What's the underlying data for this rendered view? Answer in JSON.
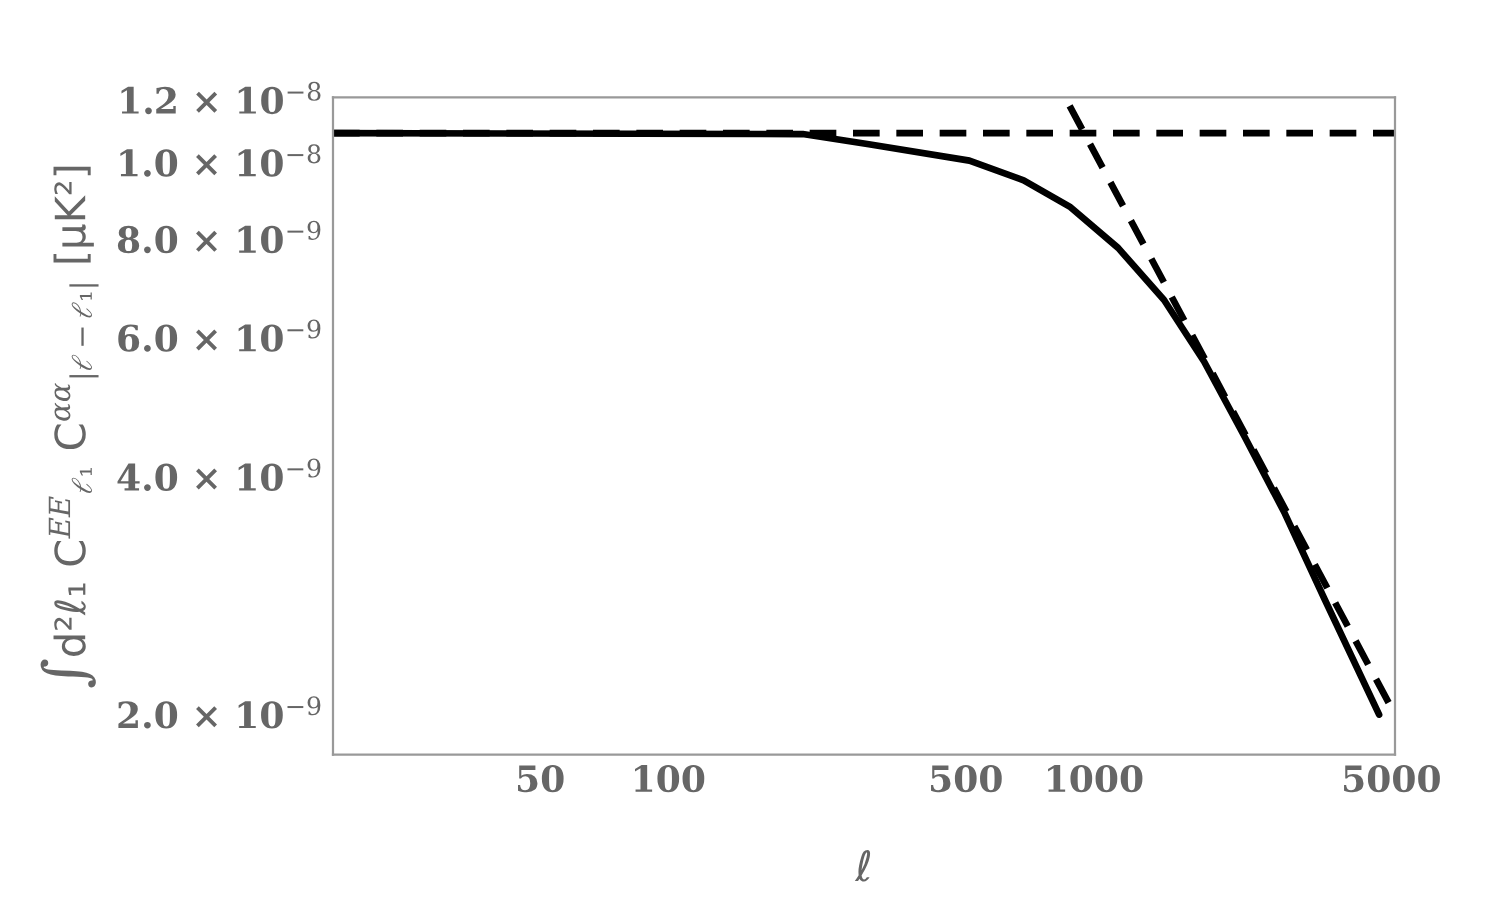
{
  "chart_data": {
    "type": "line",
    "xlabel": "ℓ",
    "ylabel": "∫d²ℓ₁ C$^{EE}$$_{ℓ₁}$ C$^{αα}$$_{|ℓ−ℓ₁|}$ [μK²]",
    "series": [
      {
        "color": "#000000",
        "line_style": "solid",
        "x": [
          16.3,
          207,
          296,
          510,
          684,
          877,
          1140,
          1462,
          1815,
          2259,
          2807,
          3485,
          4680
        ],
        "values": [
          1.09e-08,
          1.087e-08,
          1.055e-08,
          1.006e-08,
          9.5e-09,
          8.8e-09,
          7.8e-09,
          6.7e-09,
          5.6e-09,
          4.5e-09,
          3.6e-09,
          2.8e-09,
          2e-09
        ]
      },
      {
        "color": "#000000",
        "line_style": "dashed",
        "x": [
          16.3,
          5100
        ],
        "values": [
          1.09e-08,
          1.09e-08
        ]
      },
      {
        "color": "#000000",
        "line_style": "dashed",
        "x": [
          877,
          5100
        ],
        "values": [
          1.18e-08,
          2e-09
        ]
      }
    ],
    "log": "xy",
    "xlim": [
      16.3,
      5100
    ],
    "ylim": [
      1.78e-09,
      1.21e-08
    ],
    "xticks": [
      50,
      100,
      500,
      1000,
      5000
    ],
    "yticks": [
      {
        "value": 2e-09,
        "label": "2.0 × 10$^{−9}$"
      },
      {
        "value": 4e-09,
        "label": "4.0 × 10$^{−9}$"
      },
      {
        "value": 6e-09,
        "label": "6.0 × 10$^{−9}$"
      },
      {
        "value": 8e-09,
        "label": "8.0 × 10$^{−9}$"
      },
      {
        "value": 1e-08,
        "label": "1.0 × 10$^{−8}$"
      },
      {
        "value": 1.2e-08,
        "label": "1.2 × 10$^{−8}$"
      }
    ],
    "grid": false,
    "legend": false
  }
}
